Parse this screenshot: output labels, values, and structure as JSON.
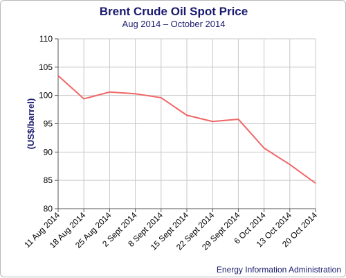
{
  "chart_data": {
    "type": "line",
    "title": "Brent Crude Oil Spot Price",
    "subtitle": "Aug 2014 – October 2014",
    "xlabel": "",
    "ylabel": "(US$/barrel)",
    "source": "Energy Information Administration",
    "categories": [
      "11 Aug 2014",
      "18 Aug 2014",
      "25 Aug 2014",
      "2 Sept 2014",
      "8 Sept 2014",
      "15 Sept 2014",
      "22 Sept 2014",
      "29 Sept 2014",
      "6 Oct 2014",
      "13 Oct 2014",
      "20 Oct 2014"
    ],
    "series": [
      {
        "values": [
          103.5,
          99.4,
          100.6,
          100.3,
          99.6,
          96.5,
          95.4,
          95.8,
          90.7,
          87.8,
          84.5
        ],
        "color": "#f06666"
      }
    ],
    "ylim": [
      80,
      110
    ],
    "yticks": [
      80,
      85,
      90,
      95,
      100,
      105,
      110
    ],
    "grid": true,
    "legend": "none"
  }
}
